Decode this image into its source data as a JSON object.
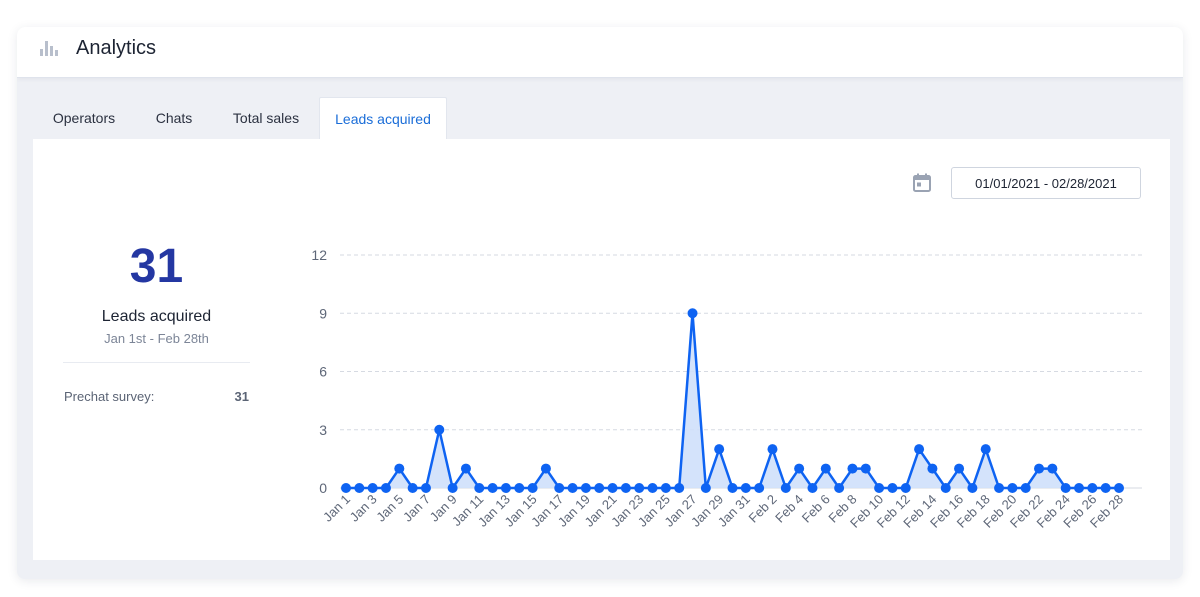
{
  "header": {
    "title": "Analytics",
    "icon": "bar-chart-icon"
  },
  "tabs": [
    {
      "label": "Operators",
      "active": false
    },
    {
      "label": "Chats",
      "active": false
    },
    {
      "label": "Total sales",
      "active": false
    },
    {
      "label": "Leads acquired",
      "active": true
    }
  ],
  "summary": {
    "value": "31",
    "label": "Leads acquired",
    "range": "Jan 1st - Feb 28th",
    "stat_label": "Prechat survey:",
    "stat_value": "31"
  },
  "date_filter": {
    "value": "01/01/2021 - 02/28/2021",
    "icon": "calendar-icon"
  },
  "colors": {
    "accent": "#1a6dd8",
    "line": "#0e63f2",
    "fill": "#cfe0fb",
    "kpi": "#2437a2",
    "grid": "#d6dae2"
  },
  "chart_data": {
    "type": "area",
    "title": "",
    "xlabel": "",
    "ylabel": "",
    "ylim": [
      0,
      12
    ],
    "yticks": [
      0,
      3,
      6,
      9,
      12
    ],
    "grid": true,
    "categories": [
      "Jan 1",
      "Jan 2",
      "Jan 3",
      "Jan 4",
      "Jan 5",
      "Jan 6",
      "Jan 7",
      "Jan 8",
      "Jan 9",
      "Jan 10",
      "Jan 11",
      "Jan 12",
      "Jan 13",
      "Jan 14",
      "Jan 15",
      "Jan 16",
      "Jan 17",
      "Jan 18",
      "Jan 19",
      "Jan 20",
      "Jan 21",
      "Jan 22",
      "Jan 23",
      "Jan 24",
      "Jan 25",
      "Jan 26",
      "Jan 27",
      "Jan 28",
      "Jan 29",
      "Jan 30",
      "Jan 31",
      "Feb 1",
      "Feb 2",
      "Feb 3",
      "Feb 4",
      "Feb 5",
      "Feb 6",
      "Feb 7",
      "Feb 8",
      "Feb 9",
      "Feb 10",
      "Feb 11",
      "Feb 12",
      "Feb 13",
      "Feb 14",
      "Feb 15",
      "Feb 16",
      "Feb 17",
      "Feb 18",
      "Feb 19",
      "Feb 20",
      "Feb 21",
      "Feb 22",
      "Feb 23",
      "Feb 24",
      "Feb 25",
      "Feb 26",
      "Feb 27",
      "Feb 28"
    ],
    "tick_labels": [
      "Jan 1",
      "Jan 3",
      "Jan 5",
      "Jan 7",
      "Jan 9",
      "Jan 11",
      "Jan 13",
      "Jan 15",
      "Jan 17",
      "Jan 19",
      "Jan 21",
      "Jan 23",
      "Jan 25",
      "Jan 27",
      "Jan 29",
      "Jan 31",
      "Feb 2",
      "Feb 4",
      "Feb 6",
      "Feb 8",
      "Feb 10",
      "Feb 12",
      "Feb 14",
      "Feb 16",
      "Feb 18",
      "Feb 20",
      "Feb 22",
      "Feb 24",
      "Feb 26",
      "Feb 28"
    ],
    "series": [
      {
        "name": "Leads acquired",
        "values": [
          0,
          0,
          0,
          0,
          1,
          0,
          0,
          3,
          0,
          1,
          0,
          0,
          0,
          0,
          0,
          1,
          0,
          0,
          0,
          0,
          0,
          0,
          0,
          0,
          0,
          0,
          9,
          0,
          2,
          0,
          0,
          0,
          2,
          0,
          1,
          0,
          1,
          0,
          1,
          1,
          0,
          0,
          0,
          2,
          1,
          0,
          1,
          0,
          2,
          0,
          0,
          0,
          1,
          1,
          0,
          0,
          0,
          0,
          0
        ]
      }
    ]
  }
}
